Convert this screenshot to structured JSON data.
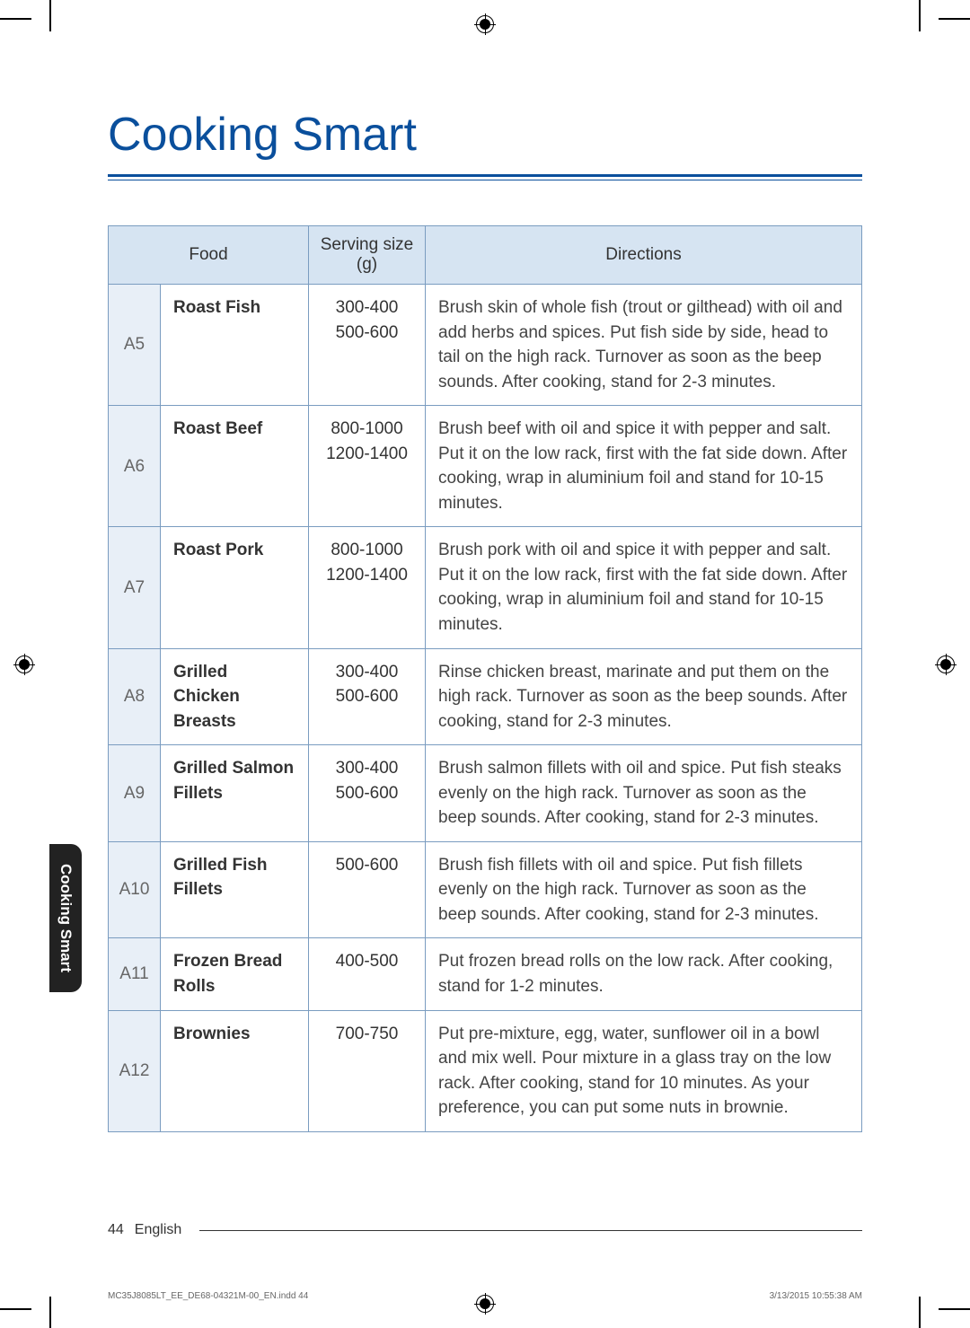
{
  "page": {
    "title": "Cooking Smart",
    "side_tab": "Cooking Smart",
    "page_number": "44",
    "language_label": "English",
    "print_file": "MC35J8085LT_EE_DE68-04321M-00_EN.indd   44",
    "print_date": "3/13/2015   10:55:38 AM"
  },
  "table": {
    "headers": {
      "food": "Food",
      "serving": "Serving size (g)",
      "directions": "Directions"
    },
    "rows": [
      {
        "code": "A5",
        "food": "Roast Fish",
        "serving": "300-400\n500-600",
        "directions": "Brush skin of whole fish (trout or gilthead) with oil and add herbs and spices. Put fish side by side, head to tail on the high rack. Turnover as soon as the beep sounds. After cooking, stand for 2-3 minutes."
      },
      {
        "code": "A6",
        "food": "Roast Beef",
        "serving": "800-1000\n1200-1400",
        "directions": "Brush beef with oil and spice it with pepper and salt. Put it on the low rack, first with the fat side down. After cooking, wrap in aluminium foil and stand for 10-15 minutes."
      },
      {
        "code": "A7",
        "food": "Roast Pork",
        "serving": "800-1000\n1200-1400",
        "directions": "Brush pork with oil and spice it with pepper and salt. Put it on the low rack, first with the fat side down. After cooking, wrap in aluminium foil and stand for 10-15 minutes."
      },
      {
        "code": "A8",
        "food": "Grilled Chicken Breasts",
        "serving": "300-400\n500-600",
        "directions": "Rinse chicken breast, marinate and put them on the high rack. Turnover as soon as the beep sounds. After cooking, stand for 2-3 minutes."
      },
      {
        "code": "A9",
        "food": "Grilled Salmon Fillets",
        "serving": "300-400\n500-600",
        "directions": "Brush salmon fillets with oil and spice. Put fish steaks evenly on the high rack. Turnover as soon as the beep sounds. After cooking, stand for 2-3 minutes."
      },
      {
        "code": "A10",
        "food": "Grilled Fish Fillets",
        "serving": "500-600",
        "directions": "Brush fish fillets with oil and spice. Put fish fillets evenly on the high rack. Turnover as soon as the beep sounds. After cooking, stand for 2-3 minutes."
      },
      {
        "code": "A11",
        "food": "Frozen Bread Rolls",
        "serving": "400-500",
        "directions": "Put frozen bread rolls on the low rack. After cooking, stand for 1-2 minutes."
      },
      {
        "code": "A12",
        "food": "Brownies",
        "serving": "700-750",
        "directions": "Put pre-mixture, egg, water, sunflower oil in a bowl and mix well. Pour mixture in a glass tray on the low rack. After cooking, stand for 10 minutes. As your preference, you can put some nuts in brownie."
      }
    ]
  }
}
